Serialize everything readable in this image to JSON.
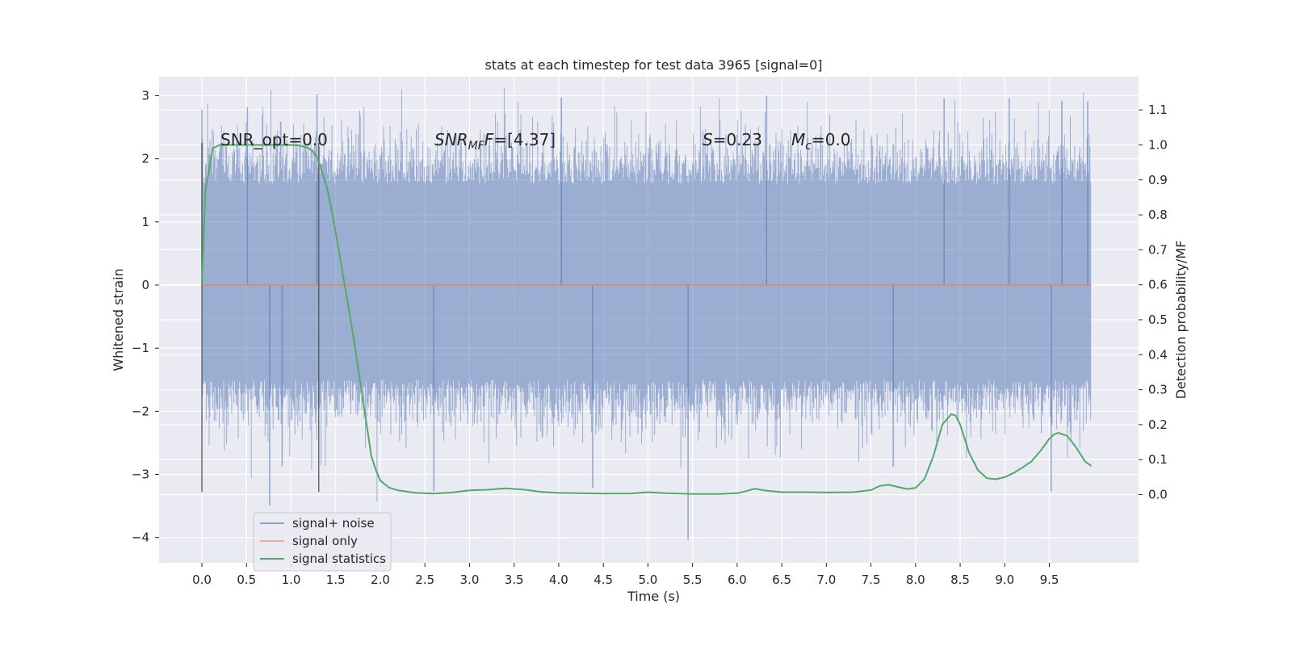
{
  "chart_data": {
    "type": "line",
    "title": "stats at each timestep for test data 3965 [signal=0]",
    "xlabel": "Time (s)",
    "ylabel": "Whitened strain",
    "y2label": "Detection probability/MF",
    "xlim": [
      -0.48,
      10.5
    ],
    "ylim": [
      -4.4,
      3.3
    ],
    "y2lim": [
      -0.195,
      1.195
    ],
    "grid": true,
    "legend_position": "lower-left",
    "x_ticks": [
      "0.0",
      "0.5",
      "1.0",
      "1.5",
      "2.0",
      "2.5",
      "3.0",
      "3.5",
      "4.0",
      "4.5",
      "5.0",
      "5.5",
      "6.0",
      "6.5",
      "7.0",
      "7.5",
      "8.0",
      "8.5",
      "9.0",
      "9.5"
    ],
    "y_ticks": [
      "3",
      "2",
      "1",
      "0",
      "−1",
      "−2",
      "−3",
      "−4"
    ],
    "y2_ticks": [
      "1.1",
      "1.0",
      "0.9",
      "0.8",
      "0.7",
      "0.6",
      "0.5",
      "0.4",
      "0.3",
      "0.2",
      "0.1",
      "0.0"
    ],
    "annotations": {
      "snr_opt": "SNR_opt=0.0",
      "snr_mf_base": "SNR",
      "snr_mf_sub": "MF",
      "snr_mf_value": "=[4.37]",
      "s_label": "S",
      "s_value": "=0.23",
      "mc_base": "M",
      "mc_sub": "c",
      "mc_value": "=0.0"
    },
    "vlines_x": [
      0.0,
      1.31
    ],
    "vline_range": [
      -3.28,
      2.25
    ],
    "series": [
      {
        "name": "signal+ noise",
        "color": "#4c72b0",
        "axis": "left",
        "x_range": [
          0.0,
          9.97
        ],
        "envelope_typical": [
          -1.5,
          1.6
        ],
        "notable_peaks": [
          [
            0.0,
            2.78
          ],
          [
            0.51,
            2.82
          ],
          [
            1.29,
            3.02
          ],
          [
            4.03,
            2.97
          ],
          [
            6.33,
            3.0
          ],
          [
            8.32,
            2.96
          ],
          [
            9.05,
            2.96
          ],
          [
            9.64,
            2.92
          ],
          [
            9.93,
            2.91
          ]
        ],
        "notable_troughs": [
          [
            0.76,
            -3.49
          ],
          [
            0.9,
            -2.87
          ],
          [
            2.6,
            -3.27
          ],
          [
            4.38,
            -3.21
          ],
          [
            5.45,
            -4.03
          ],
          [
            9.52,
            -3.27
          ],
          [
            7.75,
            -2.88
          ]
        ]
      },
      {
        "name": "signal only",
        "color": "#dd8452",
        "axis": "left",
        "x": [
          0.0,
          9.97
        ],
        "values": [
          0.0,
          0.0
        ]
      },
      {
        "name": "signal statistics",
        "color": "#55a868",
        "axis": "right",
        "x": [
          0.0,
          0.04,
          0.08,
          0.12,
          0.2,
          0.3,
          0.4,
          0.5,
          0.6,
          0.8,
          1.0,
          1.1,
          1.2,
          1.25,
          1.3,
          1.35,
          1.4,
          1.45,
          1.5,
          1.6,
          1.7,
          1.8,
          1.9,
          1.95,
          2.0,
          2.1,
          2.2,
          2.4,
          2.6,
          2.8,
          3.0,
          3.2,
          3.4,
          3.6,
          3.8,
          4.0,
          4.5,
          4.8,
          5.0,
          5.2,
          5.5,
          5.8,
          6.0,
          6.1,
          6.2,
          6.3,
          6.5,
          6.8,
          7.0,
          7.3,
          7.5,
          7.6,
          7.7,
          7.8,
          7.9,
          8.0,
          8.1,
          8.2,
          8.3,
          8.4,
          8.45,
          8.5,
          8.6,
          8.7,
          8.8,
          8.9,
          9.0,
          9.1,
          9.2,
          9.3,
          9.4,
          9.5,
          9.55,
          9.6,
          9.7,
          9.8,
          9.9,
          9.97
        ],
        "values": [
          0.6,
          0.87,
          0.93,
          0.99,
          1.0,
          1.0,
          1.0,
          1.0,
          1.0,
          1.0,
          1.0,
          0.998,
          0.99,
          0.98,
          0.96,
          0.92,
          0.88,
          0.82,
          0.75,
          0.6,
          0.45,
          0.28,
          0.11,
          0.07,
          0.04,
          0.02,
          0.012,
          0.005,
          0.003,
          0.006,
          0.012,
          0.014,
          0.018,
          0.015,
          0.008,
          0.005,
          0.003,
          0.003,
          0.007,
          0.004,
          0.002,
          0.002,
          0.004,
          0.01,
          0.017,
          0.012,
          0.007,
          0.007,
          0.006,
          0.007,
          0.013,
          0.025,
          0.028,
          0.022,
          0.016,
          0.019,
          0.045,
          0.11,
          0.2,
          0.23,
          0.226,
          0.2,
          0.12,
          0.07,
          0.047,
          0.044,
          0.05,
          0.062,
          0.078,
          0.095,
          0.125,
          0.16,
          0.172,
          0.177,
          0.168,
          0.135,
          0.095,
          0.082
        ]
      }
    ]
  }
}
